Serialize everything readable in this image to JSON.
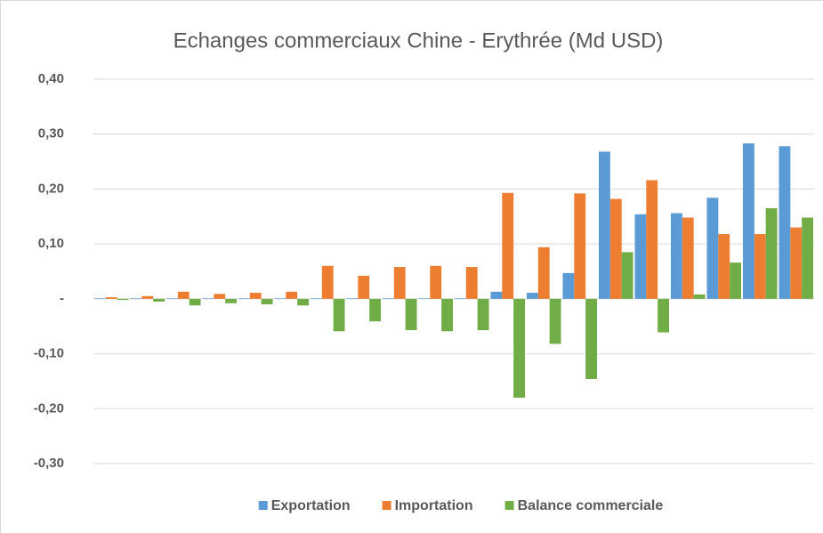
{
  "chart_data": {
    "type": "bar",
    "title": "Echanges commerciaux Chine - Erythrée (Md USD)",
    "categories": [
      null,
      null,
      null,
      null,
      null,
      null,
      null,
      null,
      null,
      null,
      null,
      null,
      null,
      null,
      null,
      null,
      null,
      null,
      null,
      null
    ],
    "series": [
      {
        "name": "Exportation",
        "color": "#5b9bd5",
        "values": [
          0.001,
          0.001,
          0.001,
          0.001,
          0.001,
          0.001,
          0.001,
          0.001,
          0.001,
          0.001,
          0.001,
          0.013,
          0.011,
          0.047,
          0.268,
          0.154,
          0.156,
          0.184,
          0.283,
          0.278
        ]
      },
      {
        "name": "Importation",
        "color": "#ed7d31",
        "values": [
          0.003,
          0.005,
          0.013,
          0.009,
          0.011,
          0.013,
          0.06,
          0.042,
          0.058,
          0.06,
          0.058,
          0.193,
          0.094,
          0.192,
          0.182,
          0.216,
          0.148,
          0.118,
          0.118,
          0.13
        ]
      },
      {
        "name": "Balance commerciale",
        "color": "#70ad47",
        "values": [
          -0.002,
          -0.005,
          -0.012,
          -0.008,
          -0.01,
          -0.012,
          -0.059,
          -0.041,
          -0.057,
          -0.059,
          -0.057,
          -0.18,
          -0.082,
          -0.146,
          0.085,
          -0.061,
          0.008,
          0.066,
          0.165,
          0.148
        ]
      }
    ],
    "ylim": [
      -0.3,
      0.4
    ],
    "yticks": [
      {
        "value": -0.3,
        "label": "-0,30"
      },
      {
        "value": -0.2,
        "label": "-0,20"
      },
      {
        "value": -0.1,
        "label": "-0,10"
      },
      {
        "value": 0,
        "label": "-"
      },
      {
        "value": 0.1,
        "label": "0,10"
      },
      {
        "value": 0.2,
        "label": "0,20"
      },
      {
        "value": 0.3,
        "label": "0,30"
      },
      {
        "value": 0.4,
        "label": "0,40"
      }
    ],
    "grid": true,
    "legend": "bottom"
  }
}
